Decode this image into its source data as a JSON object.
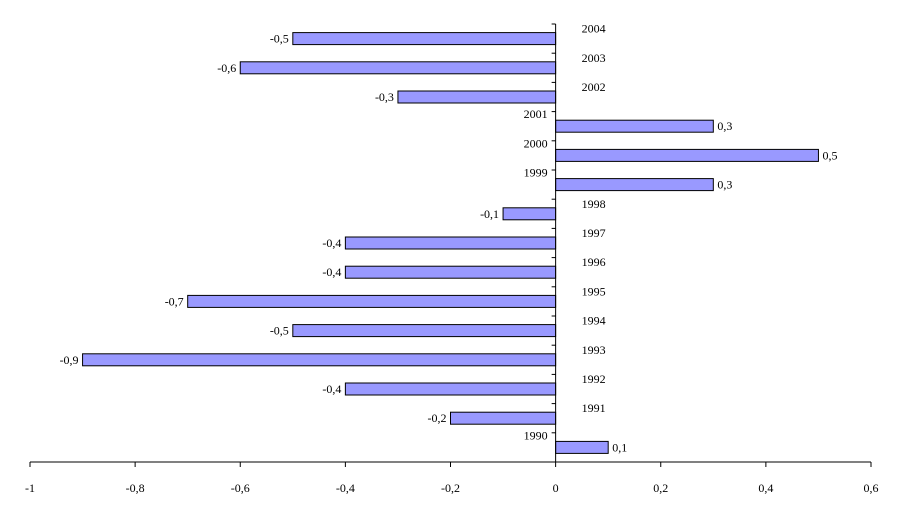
{
  "chart_data": {
    "type": "bar",
    "orientation": "horizontal",
    "categories": [
      "1990",
      "1991",
      "1992",
      "1993",
      "1994",
      "1995",
      "1996",
      "1997",
      "1998",
      "1999",
      "2000",
      "2001",
      "2002",
      "2003",
      "2004"
    ],
    "values": [
      0.1,
      -0.2,
      -0.4,
      -0.9,
      -0.5,
      -0.7,
      -0.4,
      -0.4,
      -0.1,
      0.3,
      0.5,
      0.3,
      -0.3,
      -0.6,
      -0.5
    ],
    "data_labels": [
      "0,1",
      "-0,2",
      "-0,4",
      "-0,9",
      "-0,5",
      "-0,7",
      "-0,4",
      "-0,4",
      "-0,1",
      "0,3",
      "0,5",
      "0,3",
      "-0,3",
      "-0,6",
      "-0,5"
    ],
    "xlim": [
      -1,
      0.6
    ],
    "x_ticks": [
      -1,
      -0.8,
      -0.6,
      -0.4,
      -0.2,
      0,
      0.2,
      0.4,
      0.6
    ],
    "x_tick_labels": [
      "-1",
      "-0,8",
      "-0,6",
      "-0,4",
      "-0,2",
      "0",
      "0,2",
      "0,4",
      "0,6"
    ],
    "title": "",
    "xlabel": "",
    "ylabel": "",
    "grid": false,
    "legend": "none",
    "colors": {
      "bar_fill": "#9999ff",
      "bar_stroke": "#000000"
    }
  }
}
